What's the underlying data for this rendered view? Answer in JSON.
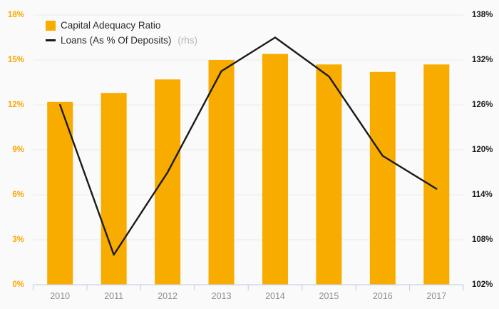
{
  "chart_data": {
    "type": "bar",
    "subtype": "combo-bar-line",
    "categories": [
      "2010",
      "2011",
      "2012",
      "2013",
      "2014",
      "2015",
      "2016",
      "2017"
    ],
    "series": [
      {
        "name": "Capital Adequacy Ratio",
        "type": "bar",
        "axis": "left",
        "color": "#f8ac00",
        "values": [
          12.2,
          12.8,
          13.7,
          15.0,
          15.4,
          14.7,
          14.2,
          14.7
        ]
      },
      {
        "name": "Loans (As % Of Deposits)",
        "suffix": "(rhs)",
        "type": "line",
        "axis": "right",
        "color": "#1a1a1a",
        "values": [
          126,
          106,
          117,
          130.5,
          135,
          129.8,
          119.2,
          114.8
        ]
      }
    ],
    "title": "",
    "xlabel": "",
    "ylabel": "",
    "left_axis": {
      "min": 0,
      "max": 18,
      "step": 3,
      "tick_labels": [
        "0%",
        "3%",
        "6%",
        "9%",
        "12%",
        "15%",
        "18%"
      ],
      "label_color": "#f8a800"
    },
    "right_axis": {
      "min": 102,
      "max": 138,
      "step": 6,
      "tick_labels": [
        "102%",
        "108%",
        "114%",
        "120%",
        "126%",
        "132%",
        "138%"
      ],
      "label_color": "#1a1a1a"
    },
    "grid": true,
    "legend_position": "top-left"
  },
  "legend": {
    "bar_label": "Capital Adequacy Ratio",
    "line_label": "Loans (As % Of Deposits)",
    "line_suffix": "(rhs)"
  },
  "colors": {
    "bar": "#f8ac00",
    "line": "#1a1a1a",
    "background": "#fafafa",
    "gridline": "#e9e9e9",
    "axis_line": "#c9d3e4",
    "year_label": "#8c8c8c",
    "left_tick_label": "#f8a800",
    "right_tick_label": "#1a1a1a",
    "rhs_note": "#b5b5b5"
  }
}
